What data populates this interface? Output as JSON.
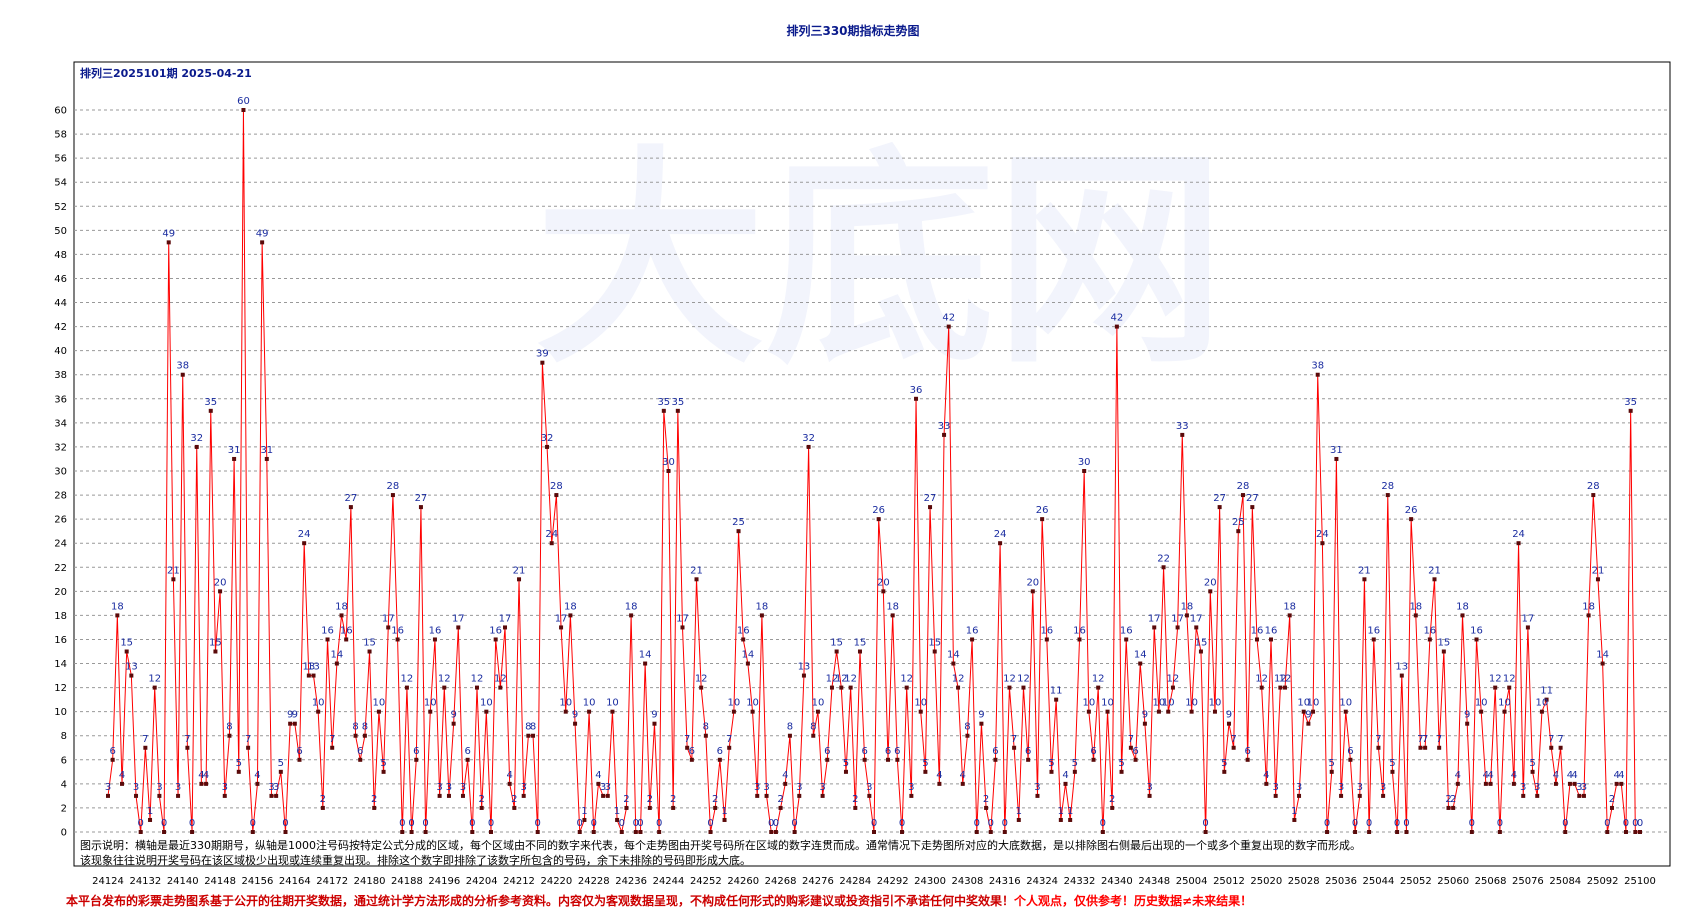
{
  "page_title": "排列三330期指标走势图",
  "chart_data": {
    "type": "line",
    "title": "排列三2025101期 2025-04-21",
    "ylim": [
      0,
      60
    ],
    "yticks": [
      0,
      2,
      4,
      6,
      8,
      10,
      12,
      14,
      16,
      18,
      20,
      22,
      24,
      26,
      28,
      30,
      32,
      34,
      36,
      38,
      40,
      42,
      44,
      46,
      48,
      50,
      52,
      54,
      56,
      58,
      60
    ],
    "xtick_labels": [
      "24124",
      "24132",
      "24140",
      "24148",
      "24156",
      "24164",
      "24172",
      "24180",
      "24188",
      "24196",
      "24204",
      "24212",
      "24220",
      "24228",
      "24236",
      "24244",
      "24252",
      "24260",
      "24268",
      "24276",
      "24284",
      "24292",
      "24300",
      "24308",
      "24316",
      "24324",
      "24332",
      "24340",
      "24348",
      "25004",
      "25012",
      "25020",
      "25028",
      "25036",
      "25044",
      "25052",
      "25060",
      "25068",
      "25076",
      "25084",
      "25092",
      "25100"
    ],
    "grid": true,
    "point_labels": true,
    "line_color": "#ff0000",
    "marker_color": "#5a0a0a",
    "label_color": "#1a2ca0",
    "watermark": "大底网",
    "values": [
      3,
      6,
      18,
      4,
      15,
      13,
      3,
      0,
      7,
      1,
      12,
      3,
      0,
      49,
      21,
      3,
      38,
      7,
      0,
      32,
      4,
      4,
      35,
      15,
      20,
      3,
      8,
      31,
      5,
      60,
      7,
      0,
      4,
      49,
      31,
      3,
      3,
      5,
      0,
      9,
      9,
      6,
      24,
      13,
      13,
      10,
      2,
      16,
      7,
      14,
      18,
      16,
      27,
      8,
      6,
      8,
      15,
      2,
      10,
      5,
      17,
      28,
      16,
      0,
      12,
      0,
      6,
      27,
      0,
      10,
      16,
      3,
      12,
      3,
      9,
      17,
      3,
      6,
      0,
      12,
      2,
      10,
      0,
      16,
      12,
      17,
      4,
      2,
      21,
      3,
      8,
      8,
      0,
      39,
      32,
      24,
      28,
      17,
      10,
      18,
      9,
      0,
      1,
      10,
      0,
      4,
      3,
      3,
      10,
      1,
      0,
      2,
      18,
      0,
      0,
      14,
      2,
      9,
      0,
      35,
      30,
      2,
      35,
      17,
      7,
      6,
      21,
      12,
      8,
      0,
      2,
      6,
      1,
      7,
      10,
      25,
      16,
      14,
      10,
      3,
      18,
      3,
      0,
      0,
      2,
      4,
      8,
      0,
      3,
      13,
      32,
      8,
      10,
      3,
      6,
      12,
      15,
      12,
      5,
      12,
      2,
      15,
      6,
      3,
      0,
      26,
      20,
      6,
      18,
      6,
      0,
      12,
      3,
      36,
      10,
      5,
      27,
      15,
      4,
      33,
      42,
      14,
      12,
      4,
      8,
      16,
      0,
      9,
      2,
      0,
      6,
      24,
      0,
      12,
      7,
      1,
      12,
      6,
      20,
      3,
      26,
      16,
      5,
      11,
      1,
      4,
      1,
      5,
      16,
      30,
      10,
      6,
      12,
      0,
      10,
      2,
      42,
      5,
      16,
      7,
      6,
      14,
      9,
      3,
      17,
      10,
      22,
      10,
      12,
      17,
      33,
      18,
      10,
      17,
      15,
      0,
      20,
      10,
      27,
      5,
      9,
      7,
      25,
      28,
      6,
      27,
      16,
      12,
      4,
      16,
      3,
      12,
      12,
      18,
      1,
      3,
      10,
      9,
      10,
      38,
      24,
      0,
      5,
      31,
      3,
      10,
      6,
      0,
      3,
      21,
      0,
      16,
      7,
      3,
      28,
      5,
      0,
      13,
      0,
      26,
      18,
      7,
      7,
      16,
      21,
      7,
      15,
      2,
      2,
      4,
      18,
      9,
      0,
      16,
      10,
      4,
      4,
      12,
      0,
      10,
      12,
      4,
      24,
      3,
      17,
      5,
      3,
      10,
      11,
      7,
      4,
      7,
      0,
      4,
      4,
      3,
      3,
      18,
      28,
      21,
      14,
      0,
      2,
      4,
      4,
      0,
      35,
      0,
      0
    ]
  },
  "description": {
    "line1": "图示说明：横轴是最近330期期号，纵轴是1000注号码按特定公式分成的区域，每个区域由不同的数字来代表，每个走势图由开奖号码所在区域的数字连贯而成。通常情况下走势图所对应的大底数据，是以排除图右侧最后出现的一个或多个重复出现的数字而形成。",
    "line2": "该现象往往说明开奖号码在该区域极少出现或连续重复出现。排除这个数字即排除了该数字所包含的号码，余下未排除的号码即形成大底。"
  },
  "footer": {
    "main": "本平台发布的彩票走势图系基于公开的往期开奖数据，通过统计学方法形成的分析参考资料。内容仅为客观数据呈现，不构成任何形式的购彩建议或投资指引不承诺任何中奖效果！",
    "emphasis": "个人观点，仅供参考！历史数据≠未来结果！"
  }
}
